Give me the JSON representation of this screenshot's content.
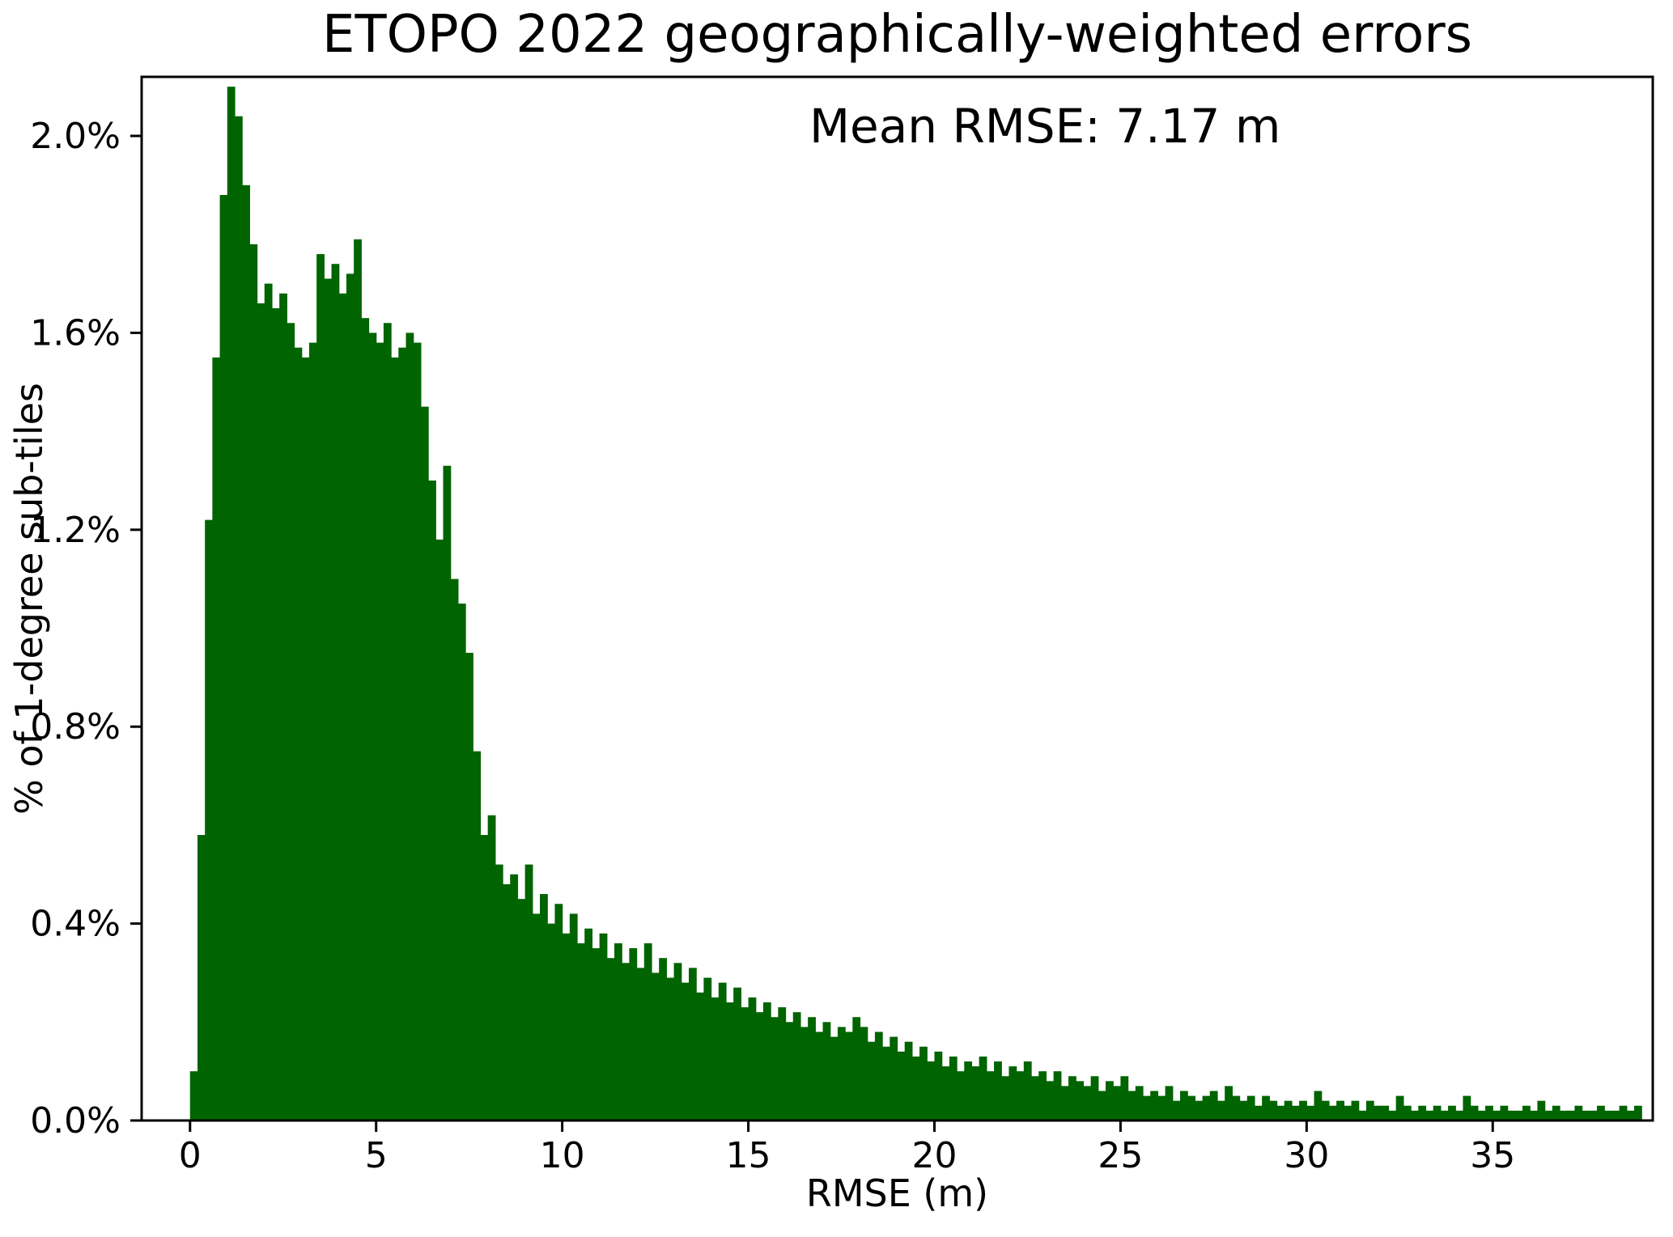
{
  "chart_data": {
    "type": "bar",
    "subtype": "histogram",
    "title": "ETOPO 2022 geographically-weighted errors",
    "annotation": "Mean RMSE: 7.17 m",
    "xlabel": "RMSE (m)",
    "ylabel": "% of 1-degree sub-tiles",
    "bar_color": "#006400",
    "background_color": "#ffffff",
    "grid": false,
    "legend_position": "none",
    "bin_start": 0,
    "bin_width": 0.2,
    "xlim": [
      -1.3,
      39.3
    ],
    "ylim": [
      0,
      2.12
    ],
    "x_ticks": [
      0,
      5,
      10,
      15,
      20,
      25,
      30,
      35
    ],
    "y_ticks": [
      0.0,
      0.4,
      0.8,
      1.2,
      1.6,
      2.0
    ],
    "y_tick_labels": [
      "0.0%",
      "0.4%",
      "0.8%",
      "1.2%",
      "1.6%",
      "2.0%"
    ],
    "values_percent": [
      0.1,
      0.58,
      1.22,
      1.55,
      1.88,
      2.1,
      2.04,
      1.9,
      1.78,
      1.66,
      1.7,
      1.65,
      1.68,
      1.62,
      1.57,
      1.55,
      1.58,
      1.76,
      1.71,
      1.74,
      1.68,
      1.72,
      1.79,
      1.63,
      1.6,
      1.58,
      1.62,
      1.55,
      1.57,
      1.6,
      1.58,
      1.45,
      1.3,
      1.18,
      1.33,
      1.1,
      1.05,
      0.95,
      0.75,
      0.58,
      0.62,
      0.52,
      0.48,
      0.5,
      0.45,
      0.52,
      0.42,
      0.46,
      0.4,
      0.44,
      0.38,
      0.42,
      0.36,
      0.39,
      0.35,
      0.38,
      0.33,
      0.36,
      0.32,
      0.35,
      0.31,
      0.36,
      0.3,
      0.33,
      0.29,
      0.32,
      0.28,
      0.31,
      0.26,
      0.29,
      0.25,
      0.28,
      0.24,
      0.27,
      0.23,
      0.25,
      0.22,
      0.24,
      0.21,
      0.23,
      0.2,
      0.22,
      0.19,
      0.21,
      0.18,
      0.2,
      0.17,
      0.19,
      0.18,
      0.21,
      0.19,
      0.16,
      0.18,
      0.15,
      0.17,
      0.14,
      0.16,
      0.13,
      0.15,
      0.12,
      0.14,
      0.11,
      0.13,
      0.1,
      0.12,
      0.11,
      0.13,
      0.1,
      0.12,
      0.09,
      0.11,
      0.1,
      0.12,
      0.09,
      0.1,
      0.08,
      0.1,
      0.07,
      0.09,
      0.08,
      0.07,
      0.09,
      0.06,
      0.08,
      0.07,
      0.09,
      0.06,
      0.07,
      0.05,
      0.06,
      0.05,
      0.07,
      0.04,
      0.06,
      0.05,
      0.04,
      0.05,
      0.06,
      0.04,
      0.07,
      0.05,
      0.04,
      0.05,
      0.03,
      0.05,
      0.04,
      0.03,
      0.04,
      0.03,
      0.04,
      0.03,
      0.06,
      0.04,
      0.03,
      0.04,
      0.03,
      0.04,
      0.02,
      0.04,
      0.03,
      0.03,
      0.02,
      0.05,
      0.03,
      0.02,
      0.03,
      0.02,
      0.03,
      0.02,
      0.03,
      0.02,
      0.05,
      0.03,
      0.02,
      0.03,
      0.02,
      0.03,
      0.02,
      0.02,
      0.03,
      0.02,
      0.04,
      0.02,
      0.03,
      0.02,
      0.02,
      0.03,
      0.02,
      0.02,
      0.03,
      0.02,
      0.02,
      0.03,
      0.02,
      0.03
    ]
  }
}
